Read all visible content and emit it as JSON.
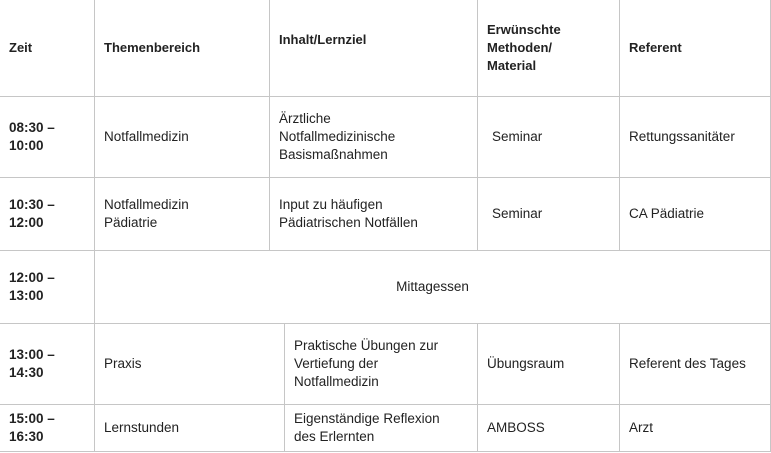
{
  "headers": [
    "Zeit",
    "Themenbereich",
    "Inhalt/Lernziel",
    "Erwünschte Methoden/ Material",
    "Referent"
  ],
  "rows": [
    {
      "zeit": "08:30 – 10:00",
      "thema": "Notfallmedizin",
      "inhalt": "Ärztliche Notfallmedizinische Basismaßnahmen",
      "methode": "Seminar",
      "referent": "Rettungssanitäter"
    },
    {
      "zeit": "10:30 – 12:00",
      "thema": "Notfallmedizin Pädiatrie",
      "inhalt": "Input zu häufigen Pädiatrischen Notfällen",
      "methode": "Seminar",
      "referent": "CA Pädiatrie"
    },
    {
      "zeit": "12:00 – 13:00",
      "merged": "Mittagessen"
    },
    {
      "zeit": "13:00 – 14:30",
      "thema": "Praxis",
      "inhalt": "Praktische Übungen zur Vertiefung der Notfallmedizin",
      "methode": "Übungsraum",
      "referent": "Referent des Tages"
    },
    {
      "zeit": "15:00 – 16:30",
      "thema": "Lernstunden",
      "inhalt": "Eigenständige Reflexion des Erlernten",
      "methode": "AMBOSS",
      "referent": "Arzt"
    }
  ]
}
